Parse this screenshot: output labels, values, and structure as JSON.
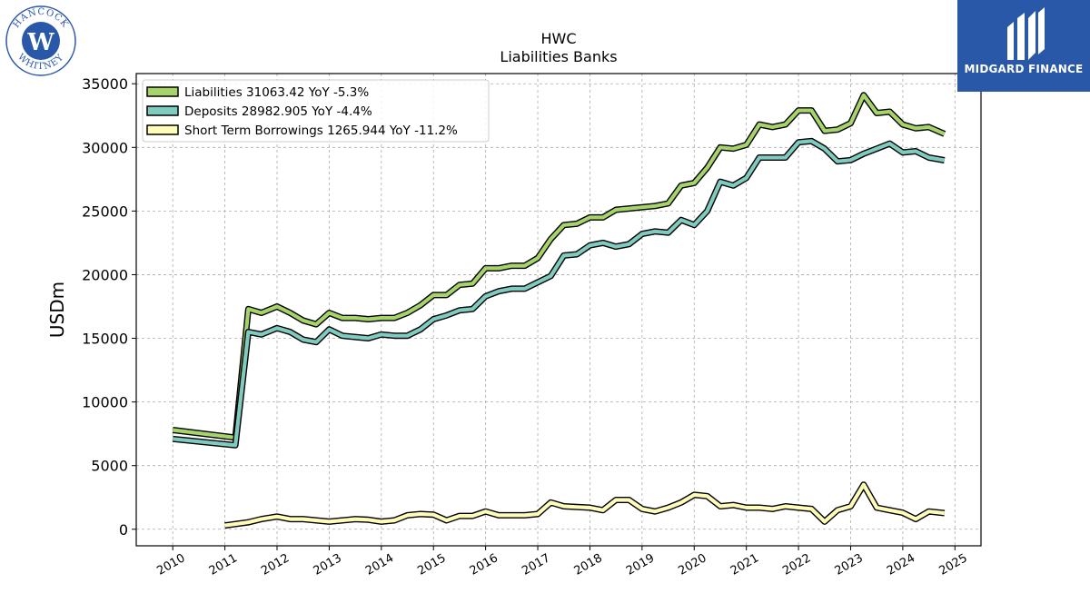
{
  "logos": {
    "left_text_top": "HANCOCK",
    "left_text_bottom": "WHITNEY",
    "right_text": "MIDGARD FINANCE"
  },
  "colors": {
    "liabilities": "#a6d46a",
    "deposits": "#7fcbbf",
    "short_term": "#fdfcb8",
    "outline": "#000000",
    "brand_blue": "#2a58a8"
  },
  "chart_data": {
    "type": "line",
    "title": "HWC",
    "subtitle": "Liabilities Banks",
    "xlabel": "",
    "ylabel": "USDm",
    "xlim": [
      2009.3,
      2025.5
    ],
    "ylim": [
      -1300,
      35800
    ],
    "yticks": [
      0,
      5000,
      10000,
      15000,
      20000,
      25000,
      30000,
      35000
    ],
    "xticks": [
      2010,
      2011,
      2012,
      2013,
      2014,
      2015,
      2016,
      2017,
      2018,
      2019,
      2020,
      2021,
      2022,
      2023,
      2024,
      2025
    ],
    "grid": true,
    "legend_position": "top-left",
    "series": [
      {
        "name": "Liabilities",
        "legend": "Liabilities  31063.42 YoY -5.3%",
        "x": [
          2010.0,
          2011.2,
          2011.45,
          2011.7,
          2012.0,
          2012.25,
          2012.5,
          2012.75,
          2013.0,
          2013.25,
          2013.5,
          2013.75,
          2014.0,
          2014.25,
          2014.5,
          2014.75,
          2015.0,
          2015.25,
          2015.5,
          2015.75,
          2016.0,
          2016.25,
          2016.5,
          2016.75,
          2017.0,
          2017.25,
          2017.5,
          2017.75,
          2018.0,
          2018.25,
          2018.5,
          2018.75,
          2019.0,
          2019.25,
          2019.5,
          2019.75,
          2020.0,
          2020.25,
          2020.5,
          2020.75,
          2021.0,
          2021.25,
          2021.5,
          2021.75,
          2022.0,
          2022.25,
          2022.5,
          2022.75,
          2023.0,
          2023.25,
          2023.5,
          2023.75,
          2024.0,
          2024.25,
          2024.5,
          2024.8
        ],
        "values": [
          7800,
          7200,
          17300,
          17000,
          17500,
          17000,
          16400,
          16100,
          17000,
          16600,
          16600,
          16500,
          16600,
          16600,
          17000,
          17600,
          18400,
          18400,
          19200,
          19300,
          20500,
          20500,
          20700,
          20700,
          21300,
          22800,
          23900,
          24000,
          24500,
          24500,
          25100,
          25200,
          25300,
          25400,
          25600,
          27000,
          27200,
          28400,
          30000,
          29900,
          30200,
          31800,
          31600,
          31800,
          32900,
          32900,
          31300,
          31400,
          31900,
          34100,
          32700,
          32800,
          31800,
          31500,
          31600,
          31063
        ]
      },
      {
        "name": "Deposits",
        "legend": "Deposits  28982.905 YoY -4.4%",
        "x": [
          2010.0,
          2011.2,
          2011.45,
          2011.7,
          2012.0,
          2012.25,
          2012.5,
          2012.75,
          2013.0,
          2013.25,
          2013.5,
          2013.75,
          2014.0,
          2014.25,
          2014.5,
          2014.75,
          2015.0,
          2015.25,
          2015.5,
          2015.75,
          2016.0,
          2016.25,
          2016.5,
          2016.75,
          2017.0,
          2017.25,
          2017.5,
          2017.75,
          2018.0,
          2018.25,
          2018.5,
          2018.75,
          2019.0,
          2019.25,
          2019.5,
          2019.75,
          2020.0,
          2020.25,
          2020.5,
          2020.75,
          2021.0,
          2021.25,
          2021.5,
          2021.75,
          2022.0,
          2022.25,
          2022.5,
          2022.75,
          2023.0,
          2023.25,
          2023.5,
          2023.75,
          2024.0,
          2024.25,
          2024.5,
          2024.8
        ],
        "values": [
          7100,
          6600,
          15500,
          15300,
          15800,
          15500,
          14900,
          14700,
          15700,
          15200,
          15100,
          15000,
          15300,
          15200,
          15200,
          15700,
          16500,
          16800,
          17200,
          17300,
          18300,
          18700,
          18900,
          18900,
          19400,
          19900,
          21500,
          21600,
          22300,
          22500,
          22200,
          22400,
          23200,
          23400,
          23300,
          24300,
          23900,
          25000,
          27300,
          27000,
          27600,
          29200,
          29200,
          29200,
          30400,
          30500,
          29900,
          28900,
          29000,
          29500,
          29900,
          30300,
          29600,
          29700,
          29200,
          28983
        ]
      },
      {
        "name": "Short Term Borrowings",
        "legend": "Short Term Borrowings  1265.944 YoY -11.2%",
        "x": [
          2011.0,
          2011.45,
          2011.7,
          2012.0,
          2012.25,
          2012.5,
          2012.75,
          2013.0,
          2013.25,
          2013.5,
          2013.75,
          2014.0,
          2014.25,
          2014.5,
          2014.75,
          2015.0,
          2015.25,
          2015.5,
          2015.75,
          2016.0,
          2016.25,
          2016.5,
          2016.75,
          2017.0,
          2017.25,
          2017.5,
          2017.75,
          2018.0,
          2018.25,
          2018.5,
          2018.75,
          2019.0,
          2019.25,
          2019.5,
          2019.75,
          2020.0,
          2020.25,
          2020.5,
          2020.75,
          2021.0,
          2021.25,
          2021.5,
          2021.75,
          2022.0,
          2022.25,
          2022.5,
          2022.75,
          2023.0,
          2023.25,
          2023.5,
          2023.75,
          2024.0,
          2024.25,
          2024.5,
          2024.8
        ],
        "values": [
          300,
          550,
          800,
          1000,
          800,
          800,
          700,
          600,
          700,
          800,
          750,
          600,
          700,
          1100,
          1200,
          1150,
          700,
          1050,
          1050,
          1400,
          1100,
          1100,
          1100,
          1200,
          2100,
          1800,
          1750,
          1700,
          1500,
          2300,
          2300,
          1600,
          1400,
          1700,
          2100,
          2700,
          2600,
          1800,
          1900,
          1700,
          1700,
          1600,
          1800,
          1700,
          1600,
          600,
          1500,
          1800,
          3500,
          1700,
          1500,
          1300,
          800,
          1400,
          1266
        ]
      }
    ]
  }
}
